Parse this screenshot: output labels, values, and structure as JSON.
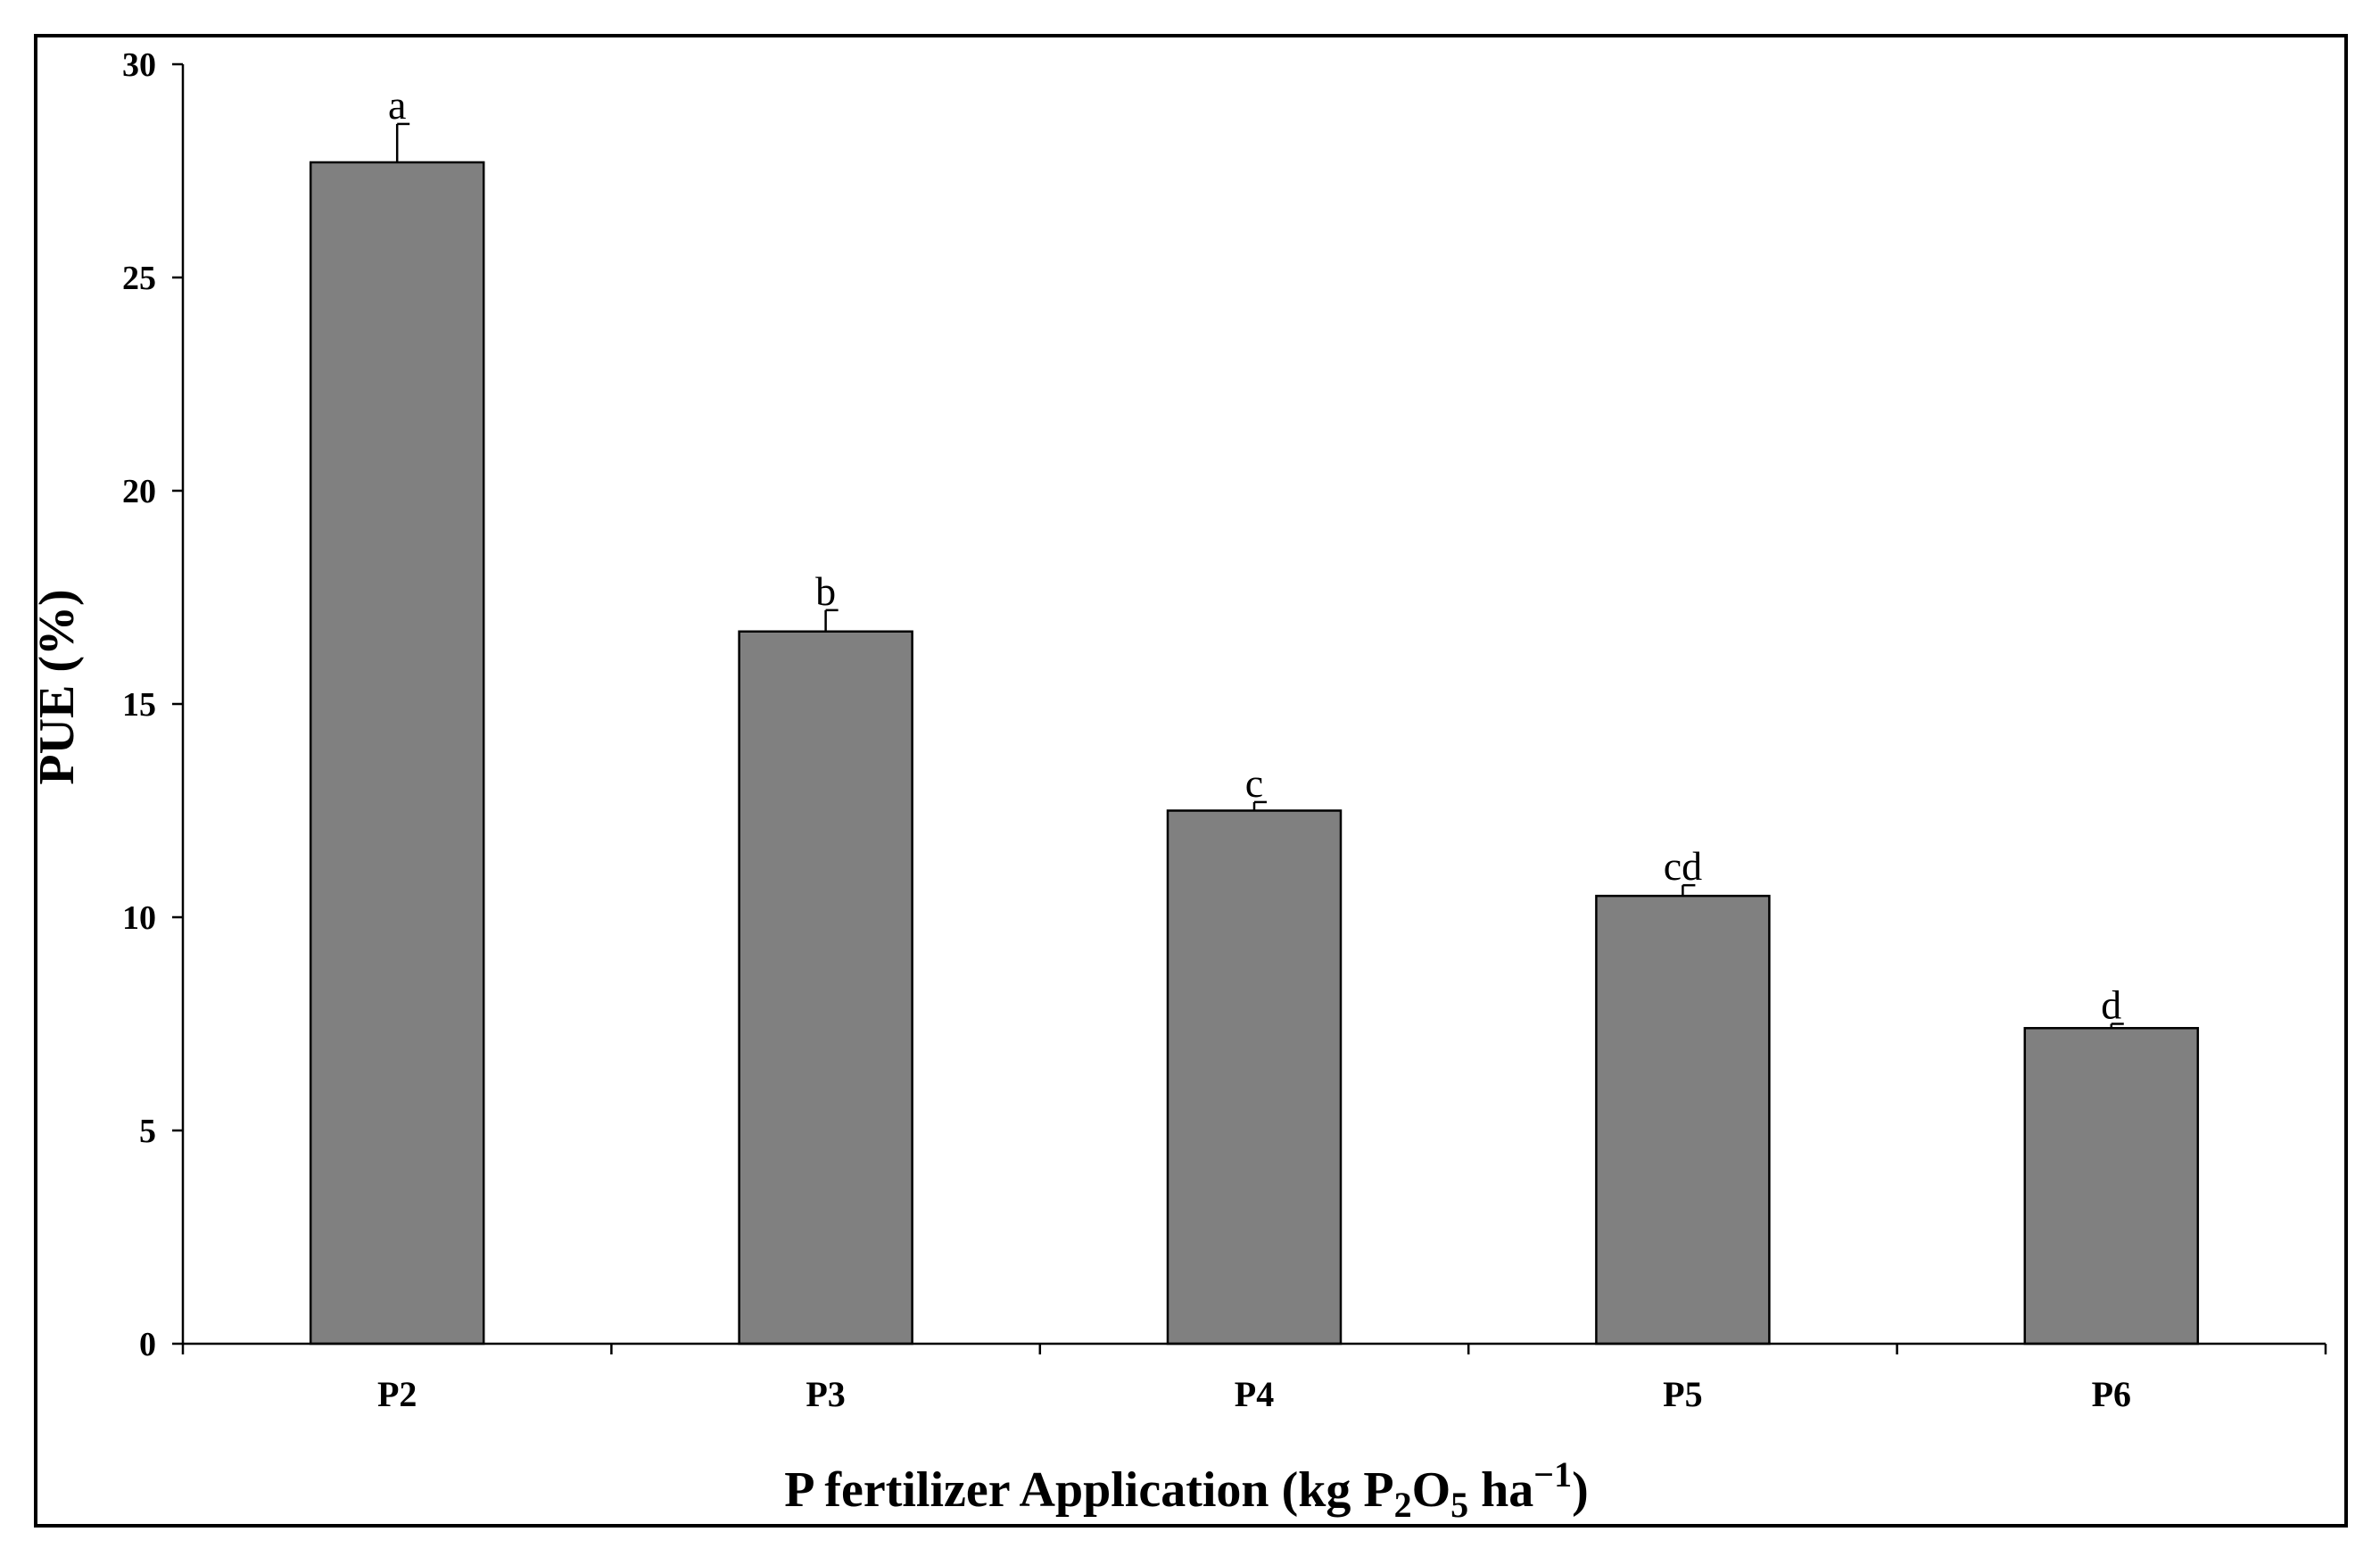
{
  "chart_data": {
    "type": "bar",
    "categories": [
      "P2",
      "P3",
      "P4",
      "P5",
      "P6"
    ],
    "values": [
      27.7,
      16.7,
      12.5,
      10.5,
      7.4
    ],
    "error": [
      0.9,
      0.5,
      0.2,
      0.25,
      0.1
    ],
    "significance_letters": [
      "a",
      "b",
      "c",
      "cd",
      "d"
    ],
    "ylabel": "PUE (%)",
    "xlabel": {
      "prefix": "P fertilizer Application (kg P",
      "sub1": "2",
      "mid": "O",
      "sub2": "5",
      "after": " ha",
      "sup": "−1",
      "suffix": ")"
    },
    "ylim": [
      0,
      30
    ],
    "yticks": [
      "0",
      "5",
      "10",
      "15",
      "20",
      "25",
      "30"
    ],
    "bar_color": "#808080",
    "grid": false,
    "legend": "none"
  }
}
